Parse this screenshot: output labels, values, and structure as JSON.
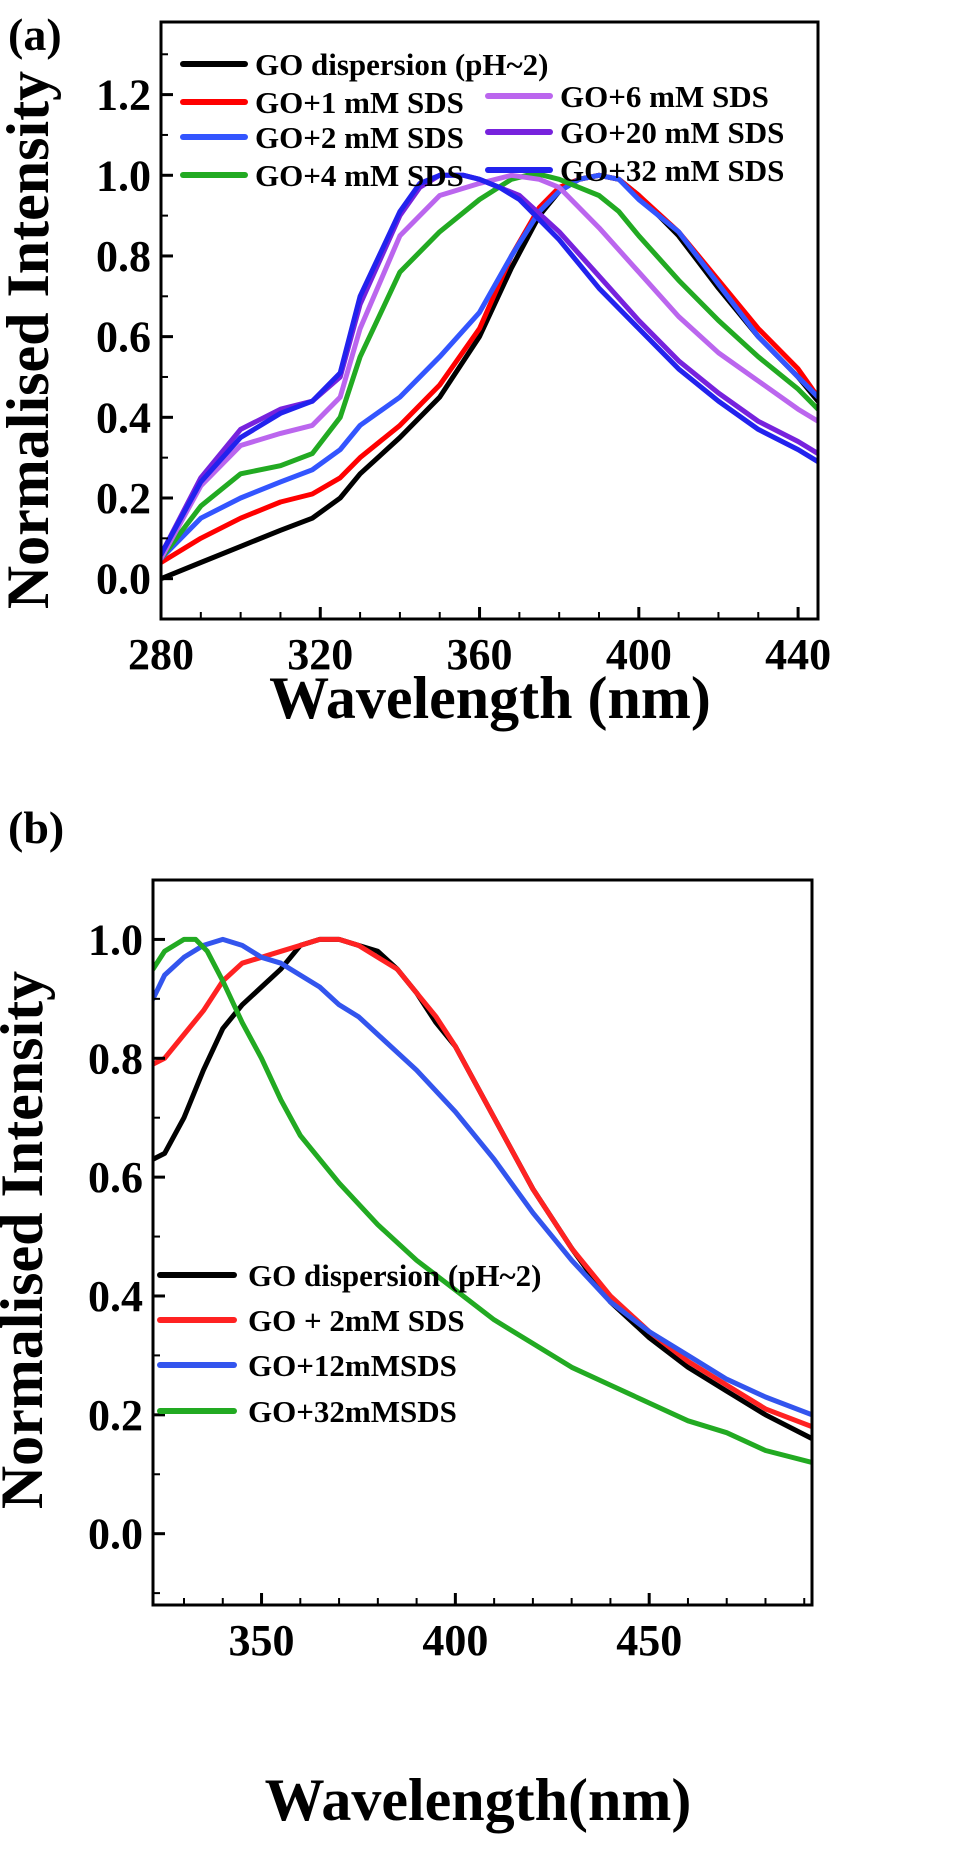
{
  "chart_data": [
    {
      "type": "line",
      "panel_label": "(a)",
      "xlabel": "Wavelength (nm)",
      "ylabel": "Normalised Intensity",
      "xlim": [
        280,
        445
      ],
      "ylim": [
        -0.1,
        1.38
      ],
      "xticks": [
        280,
        320,
        360,
        400,
        440
      ],
      "xtick_labels": [
        "280",
        "320",
        "360",
        "400",
        "440"
      ],
      "yticks": [
        0.0,
        0.2,
        0.4,
        0.6,
        0.8,
        1.0,
        1.2
      ],
      "ytick_labels": [
        "0.0",
        "0.2",
        "0.4",
        "0.6",
        "0.8",
        "1.0",
        "1.2"
      ],
      "grid": false,
      "legend_position": "top",
      "series": [
        {
          "name": "GO dispersion (pH~2)",
          "color": "#000000",
          "x": [
            280,
            290,
            300,
            310,
            318,
            325,
            330,
            340,
            350,
            360,
            368,
            375,
            380,
            385,
            390,
            395,
            400,
            410,
            420,
            430,
            440,
            445
          ],
          "y": [
            0.0,
            0.04,
            0.08,
            0.12,
            0.15,
            0.2,
            0.26,
            0.35,
            0.45,
            0.6,
            0.77,
            0.9,
            0.96,
            0.99,
            1.0,
            0.99,
            0.95,
            0.85,
            0.72,
            0.6,
            0.5,
            0.44
          ]
        },
        {
          "name": "GO+1 mM SDS",
          "color": "#ff0000",
          "x": [
            280,
            290,
            300,
            310,
            318,
            325,
            330,
            340,
            350,
            360,
            368,
            375,
            380,
            385,
            390,
            395,
            400,
            410,
            420,
            430,
            440,
            445
          ],
          "y": [
            0.04,
            0.1,
            0.15,
            0.19,
            0.21,
            0.25,
            0.3,
            0.38,
            0.48,
            0.62,
            0.8,
            0.92,
            0.97,
            0.99,
            1.0,
            0.99,
            0.95,
            0.86,
            0.74,
            0.62,
            0.52,
            0.45
          ]
        },
        {
          "name": "GO+2 mM SDS",
          "color": "#3355ff",
          "x": [
            280,
            290,
            300,
            310,
            318,
            325,
            330,
            340,
            350,
            360,
            368,
            375,
            380,
            385,
            390,
            395,
            400,
            410,
            420,
            430,
            440,
            445
          ],
          "y": [
            0.05,
            0.15,
            0.2,
            0.24,
            0.27,
            0.32,
            0.38,
            0.45,
            0.55,
            0.66,
            0.8,
            0.91,
            0.96,
            0.99,
            1.0,
            0.99,
            0.94,
            0.86,
            0.73,
            0.6,
            0.5,
            0.45
          ]
        },
        {
          "name": "GO+4 mM SDS",
          "color": "#22aa22",
          "x": [
            280,
            290,
            300,
            310,
            318,
            325,
            330,
            340,
            350,
            360,
            368,
            372,
            376,
            380,
            385,
            390,
            395,
            400,
            410,
            420,
            430,
            440,
            445
          ],
          "y": [
            0.05,
            0.18,
            0.26,
            0.28,
            0.31,
            0.4,
            0.55,
            0.76,
            0.86,
            0.94,
            0.99,
            1.0,
            1.0,
            0.99,
            0.97,
            0.95,
            0.91,
            0.85,
            0.74,
            0.64,
            0.55,
            0.47,
            0.42
          ]
        },
        {
          "name": "GO+6 mM SDS",
          "color": "#bb66ee",
          "x": [
            280,
            290,
            300,
            310,
            318,
            325,
            330,
            340,
            350,
            360,
            368,
            375,
            380,
            390,
            400,
            410,
            420,
            430,
            440,
            445
          ],
          "y": [
            0.05,
            0.23,
            0.33,
            0.36,
            0.38,
            0.45,
            0.62,
            0.85,
            0.95,
            0.98,
            1.0,
            0.99,
            0.97,
            0.87,
            0.76,
            0.65,
            0.56,
            0.49,
            0.42,
            0.39
          ]
        },
        {
          "name": "GO+20 mM SDS",
          "color": "#7722dd",
          "x": [
            280,
            290,
            300,
            310,
            318,
            325,
            330,
            340,
            345,
            350,
            356,
            360,
            365,
            370,
            380,
            390,
            400,
            410,
            420,
            430,
            440,
            445
          ],
          "y": [
            0.06,
            0.25,
            0.37,
            0.42,
            0.44,
            0.5,
            0.68,
            0.9,
            0.97,
            1.0,
            1.0,
            0.99,
            0.97,
            0.95,
            0.86,
            0.75,
            0.64,
            0.54,
            0.46,
            0.39,
            0.34,
            0.31
          ]
        },
        {
          "name": "GO+32 mM SDS",
          "color": "#2222ee",
          "x": [
            280,
            290,
            300,
            310,
            318,
            325,
            330,
            340,
            345,
            350,
            356,
            360,
            365,
            370,
            380,
            390,
            400,
            410,
            420,
            430,
            440,
            445
          ],
          "y": [
            0.06,
            0.24,
            0.35,
            0.41,
            0.44,
            0.51,
            0.7,
            0.91,
            0.98,
            1.0,
            1.0,
            0.99,
            0.97,
            0.94,
            0.84,
            0.72,
            0.62,
            0.52,
            0.44,
            0.37,
            0.32,
            0.29
          ]
        }
      ]
    },
    {
      "type": "line",
      "panel_label": "(b)",
      "xlabel": "Wavelength(nm)",
      "ylabel": "Normalised Intensity",
      "xlim": [
        322,
        492
      ],
      "ylim": [
        -0.12,
        1.1
      ],
      "xticks": [
        350,
        400,
        450
      ],
      "xtick_labels": [
        "350",
        "400",
        "450"
      ],
      "yticks": [
        0.0,
        0.2,
        0.4,
        0.6,
        0.8,
        1.0
      ],
      "ytick_labels": [
        "0.0",
        "0.2",
        "0.4",
        "0.6",
        "0.8",
        "1.0"
      ],
      "grid": false,
      "legend_position": "bottom-left",
      "series": [
        {
          "name": "GO dispersion (pH~2)",
          "color": "#000000",
          "x": [
            322,
            325,
            330,
            335,
            340,
            345,
            350,
            355,
            360,
            365,
            370,
            375,
            380,
            385,
            390,
            395,
            400,
            410,
            420,
            430,
            440,
            450,
            460,
            470,
            480,
            492
          ],
          "y": [
            0.63,
            0.64,
            0.7,
            0.78,
            0.85,
            0.89,
            0.92,
            0.95,
            0.99,
            1.0,
            1.0,
            0.99,
            0.98,
            0.95,
            0.91,
            0.86,
            0.82,
            0.7,
            0.58,
            0.48,
            0.39,
            0.33,
            0.28,
            0.24,
            0.2,
            0.16
          ]
        },
        {
          "name": "GO + 2mM SDS",
          "color": "#ff2222",
          "x": [
            322,
            325,
            330,
            335,
            340,
            345,
            350,
            355,
            360,
            365,
            370,
            375,
            380,
            385,
            390,
            395,
            400,
            410,
            420,
            430,
            440,
            450,
            460,
            470,
            480,
            492
          ],
          "y": [
            0.79,
            0.8,
            0.84,
            0.88,
            0.93,
            0.96,
            0.97,
            0.98,
            0.99,
            1.0,
            1.0,
            0.99,
            0.97,
            0.95,
            0.91,
            0.87,
            0.82,
            0.7,
            0.58,
            0.48,
            0.4,
            0.34,
            0.29,
            0.25,
            0.21,
            0.18
          ]
        },
        {
          "name": "GO+12mMSDS",
          "color": "#3355ee",
          "x": [
            322,
            325,
            330,
            335,
            340,
            345,
            350,
            355,
            360,
            365,
            370,
            375,
            380,
            390,
            400,
            410,
            420,
            430,
            440,
            450,
            460,
            470,
            480,
            492
          ],
          "y": [
            0.9,
            0.94,
            0.97,
            0.99,
            1.0,
            0.99,
            0.97,
            0.96,
            0.94,
            0.92,
            0.89,
            0.87,
            0.84,
            0.78,
            0.71,
            0.63,
            0.54,
            0.46,
            0.39,
            0.34,
            0.3,
            0.26,
            0.23,
            0.2
          ]
        },
        {
          "name": "GO+32mMSDS",
          "color": "#22aa22",
          "x": [
            322,
            325,
            330,
            333,
            336,
            340,
            345,
            350,
            355,
            360,
            370,
            380,
            390,
            400,
            410,
            420,
            430,
            440,
            450,
            460,
            470,
            480,
            492
          ],
          "y": [
            0.95,
            0.98,
            1.0,
            1.0,
            0.98,
            0.93,
            0.86,
            0.8,
            0.73,
            0.67,
            0.59,
            0.52,
            0.46,
            0.41,
            0.36,
            0.32,
            0.28,
            0.25,
            0.22,
            0.19,
            0.17,
            0.14,
            0.12
          ]
        }
      ]
    }
  ]
}
